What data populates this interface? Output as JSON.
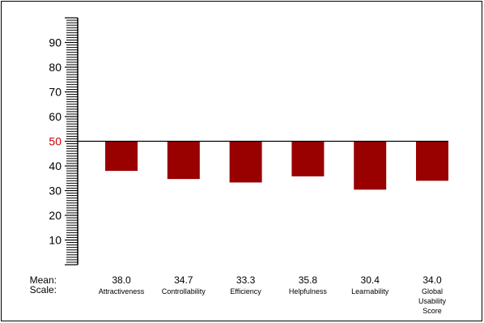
{
  "chart_data": {
    "type": "bar",
    "title": "",
    "xlabel": "",
    "ylabel": "",
    "ylim": [
      0,
      100
    ],
    "baseline": 50,
    "yticks": [
      "10",
      "20",
      "30",
      "40",
      "50",
      "60",
      "70",
      "80",
      "90"
    ],
    "row_labels": {
      "mean": "Mean:",
      "scale": "Scale:"
    },
    "categories": [
      {
        "lines": [
          "Attractiveness"
        ]
      },
      {
        "lines": [
          "Controllability"
        ]
      },
      {
        "lines": [
          "Efficiency"
        ]
      },
      {
        "lines": [
          "Helpfulness"
        ]
      },
      {
        "lines": [
          "Learnability"
        ]
      },
      {
        "lines": [
          "Global",
          "Usability",
          "Score"
        ]
      }
    ],
    "values": [
      38.0,
      34.7,
      33.3,
      35.8,
      30.4,
      34.0
    ],
    "value_labels": [
      "38.0",
      "34.7",
      "33.3",
      "35.8",
      "30.4",
      "34.0"
    ],
    "grid": false,
    "colors": {
      "bar": "#990000",
      "baseline_label": "#cc0000",
      "axis": "#000000",
      "text": "#000000"
    }
  }
}
